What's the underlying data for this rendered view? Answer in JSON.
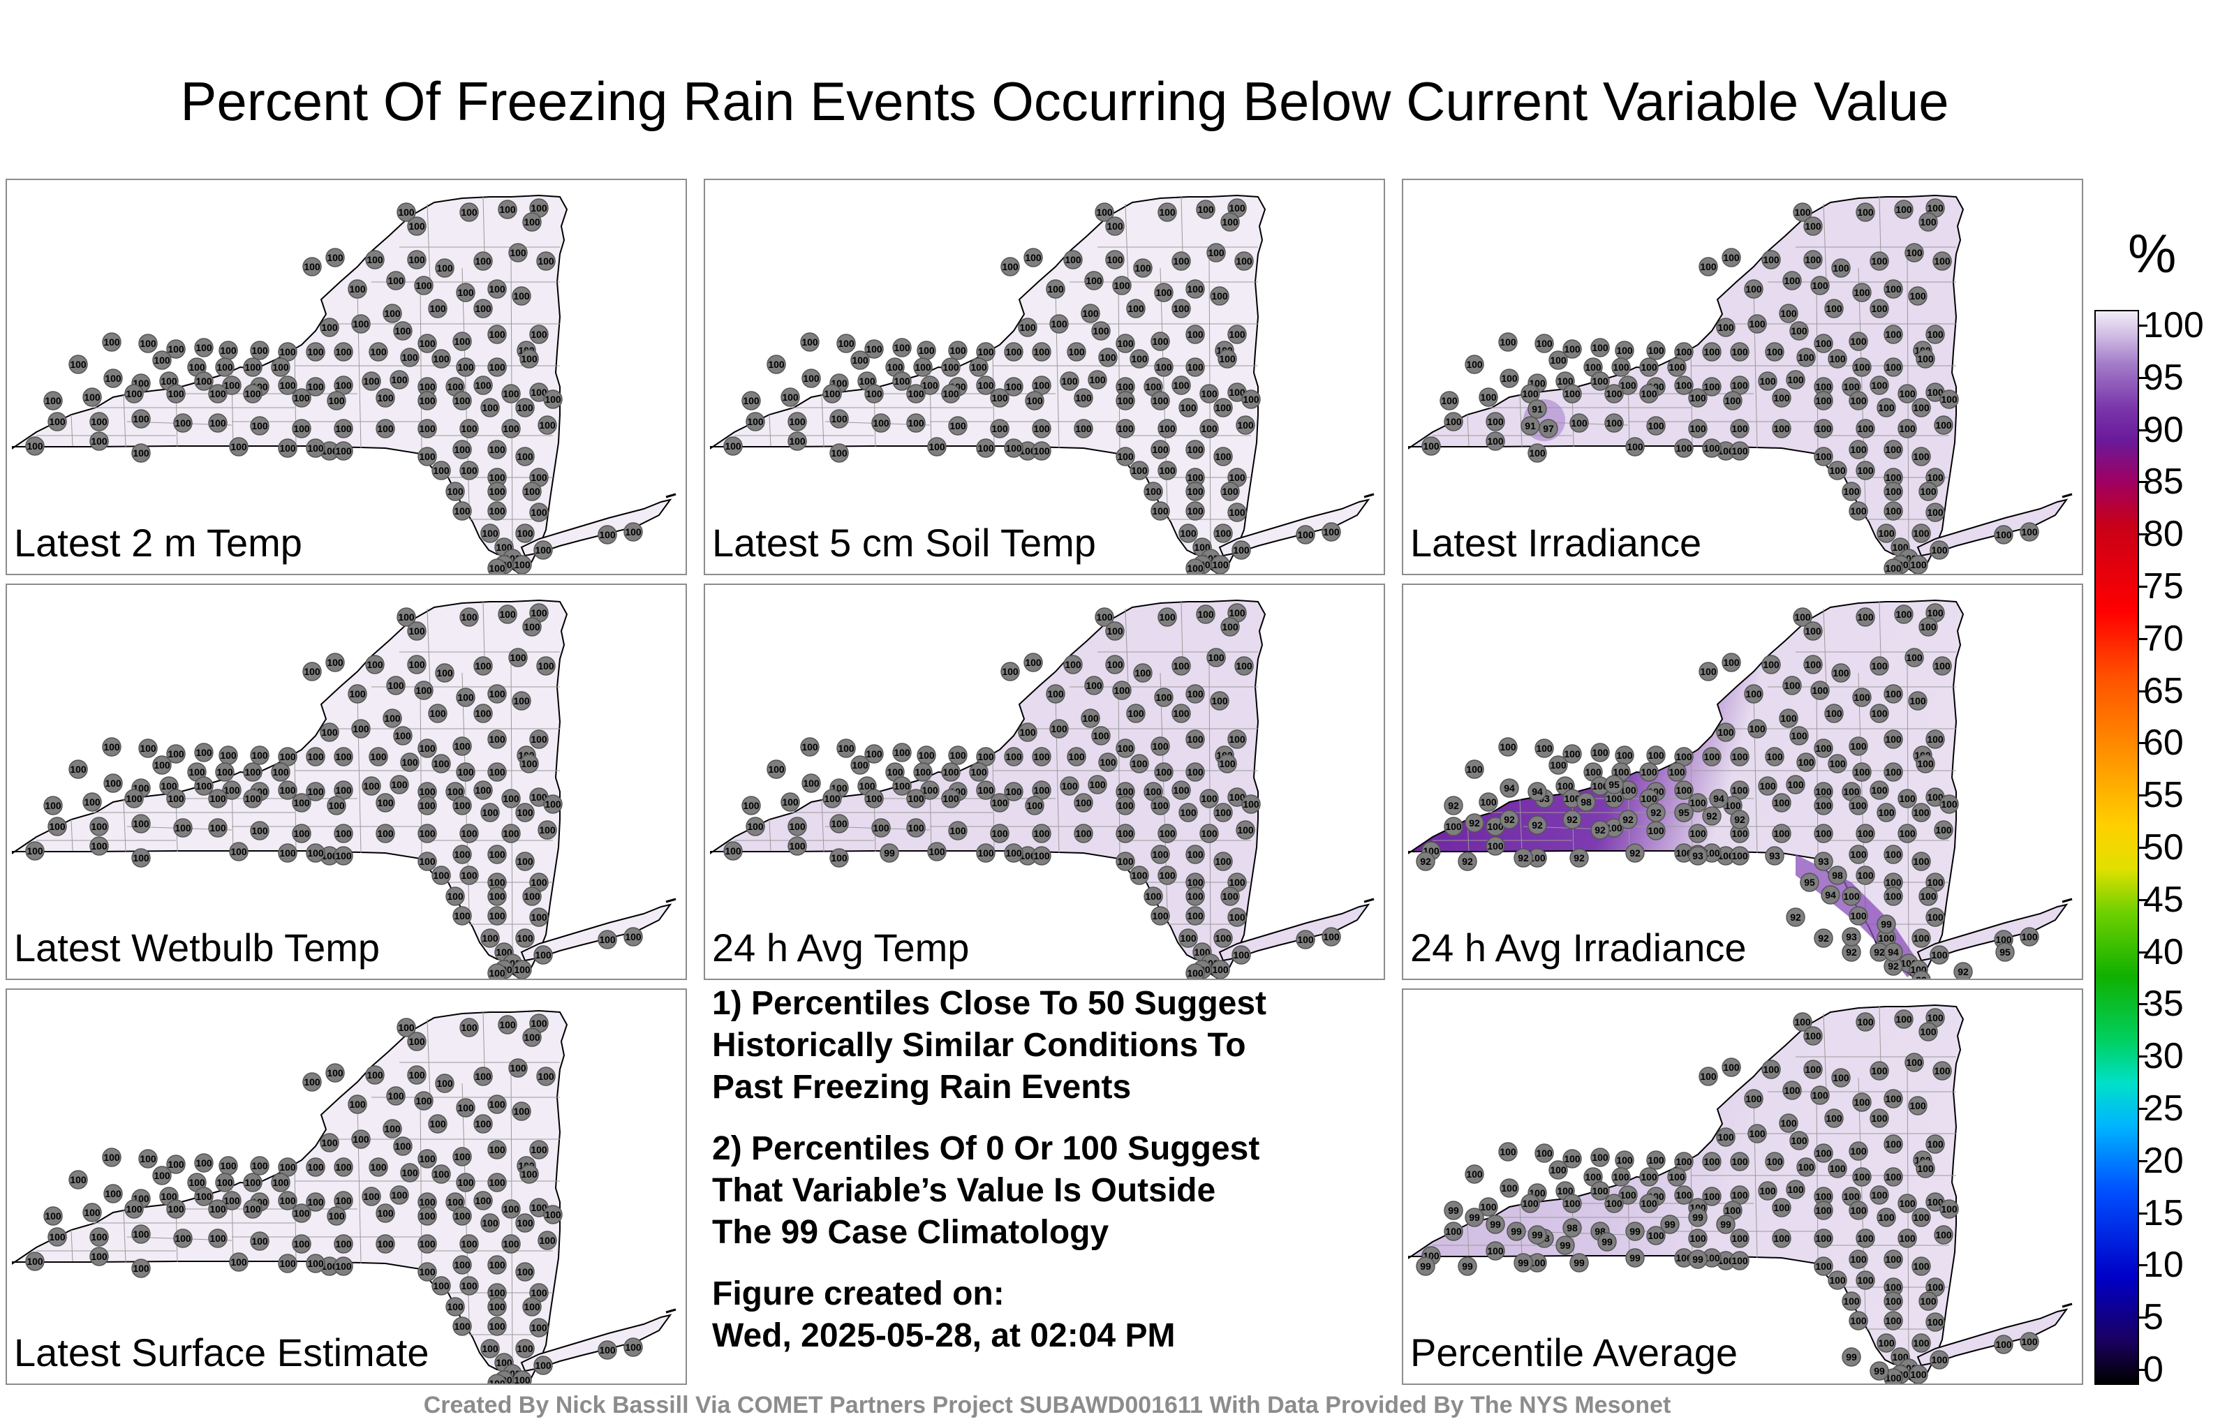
{
  "title": "Percent Of Freezing Rain Events Occurring Below Current Variable Value",
  "panels": [
    {
      "label": "Latest 2 m Temp",
      "fill": "#f1ecf5",
      "value": 100
    },
    {
      "label": "Latest 5 cm Soil Temp",
      "fill": "#f1ecf5",
      "value": 100
    },
    {
      "label": "Latest Irradiance",
      "fill": "#e6dbef",
      "value": 100,
      "low_values": [
        91,
        97
      ]
    },
    {
      "label": "Latest Wetbulb Temp",
      "fill": "#f1ecf5",
      "value": 100
    },
    {
      "label": "24 h Avg Temp",
      "fill": "#e6dbef",
      "value": 100,
      "low_values": [
        99
      ]
    },
    {
      "label": "24 h Avg Irradiance",
      "fill": "#e6dbef",
      "value": 100,
      "low_values": [
        92,
        93,
        94,
        95,
        98,
        99
      ]
    },
    {
      "label": "Latest Surface Estimate",
      "fill": "#f1ecf5",
      "value": 100
    },
    {
      "label": "Percentile Average",
      "fill": "#e6dbef",
      "value": 100,
      "low_values": [
        98,
        99
      ]
    }
  ],
  "notes": {
    "n1_line1": "1) Percentiles Close To 50 Suggest",
    "n1_line2": "Historically Similar Conditions To",
    "n1_line3": "Past Freezing Rain Events",
    "n2_line1": "2) Percentiles Of 0 Or 100 Suggest",
    "n2_line2": "That Variable’s Value Is Outside",
    "n2_line3": "The 99 Case Climatology",
    "created_label": "Figure created on:",
    "created_value": "Wed, 2025-05-28, at 02:04 PM"
  },
  "colorbar": {
    "title": "%",
    "ticks": [
      "100",
      "95",
      "90",
      "85",
      "80",
      "75",
      "70",
      "65",
      "60",
      "55",
      "50",
      "45",
      "40",
      "35",
      "30",
      "25",
      "20",
      "15",
      "10",
      "5",
      "0"
    ]
  },
  "footer": "Created By Nick Bassill Via COMET Partners Project SUBAWD001611 With Data Provided By The NYS Mesonet"
}
